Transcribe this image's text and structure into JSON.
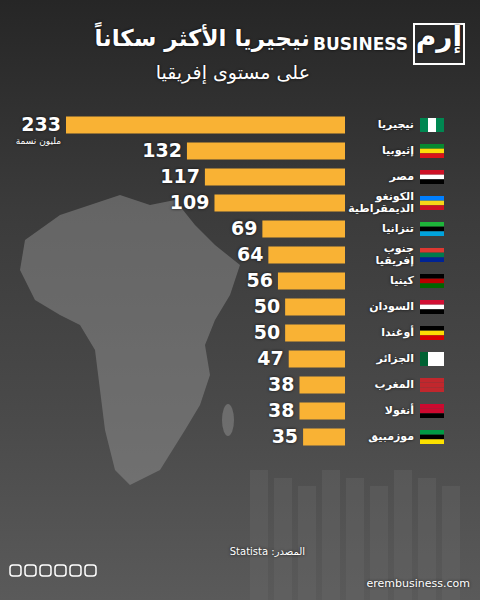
{
  "chart_data": {
    "type": "bar",
    "orientation": "horizontal",
    "title": "نيجيريا الأكثر سكاناً",
    "subtitle": "على مستوى إفريقيا",
    "logo": "إرم",
    "brand": "BUSINESS",
    "unit_label": "مليون نسمة",
    "source": "المصدر: Statista",
    "website": "erembusiness.com",
    "categories": [
      "نيجيريا",
      "إثيوبيا",
      "مصر",
      "الكونغو الديمقراطية",
      "تنزانيا",
      "جنوب إفريقيا",
      "كينيا",
      "السودان",
      "أوغندا",
      "الجزائر",
      "المغرب",
      "أنغولا",
      "موزمبيق"
    ],
    "values": [
      233,
      132,
      117,
      109,
      69,
      64,
      56,
      50,
      50,
      47,
      38,
      38,
      35
    ],
    "color": "#f9b234",
    "xlim": [
      0,
      233
    ],
    "data_labels": true,
    "tick_labels": false,
    "grid": false
  }
}
